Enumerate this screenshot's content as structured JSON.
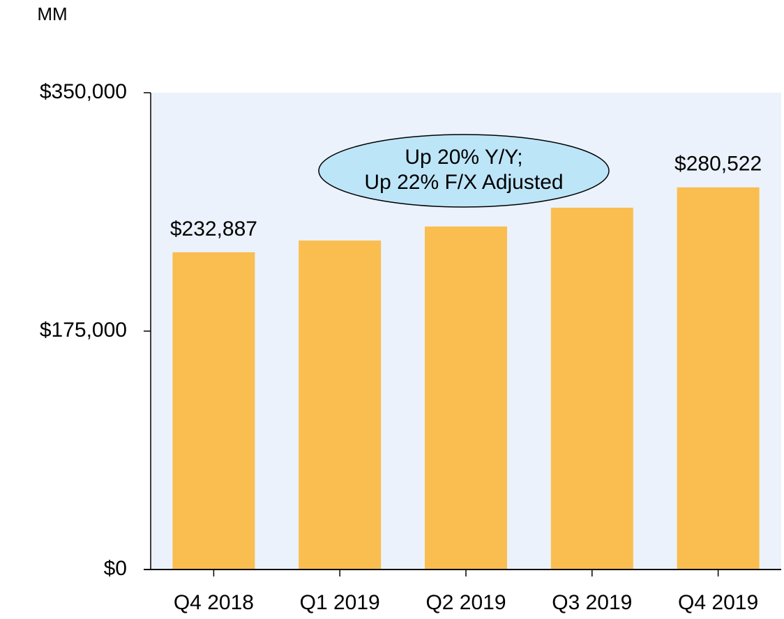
{
  "chart_data": {
    "type": "bar",
    "y_label": "MM",
    "categories": [
      "Q4 2018",
      "Q1 2019",
      "Q2 2019",
      "Q3 2019",
      "Q4 2019"
    ],
    "values": [
      232887,
      241500,
      251800,
      265600,
      280522
    ],
    "value_labels": [
      "$232,887",
      null,
      null,
      null,
      "$280,522"
    ],
    "color": "#f9be4f",
    "ylim": [
      0,
      350000
    ],
    "yticks": [
      {
        "value": 0,
        "label": "$0"
      },
      {
        "value": 175000,
        "label": "$175,000"
      },
      {
        "value": 350000,
        "label": "$350,000"
      }
    ],
    "annotation": [
      "Up 20% Y/Y;",
      "Up 22% F/X Adjusted"
    ]
  }
}
